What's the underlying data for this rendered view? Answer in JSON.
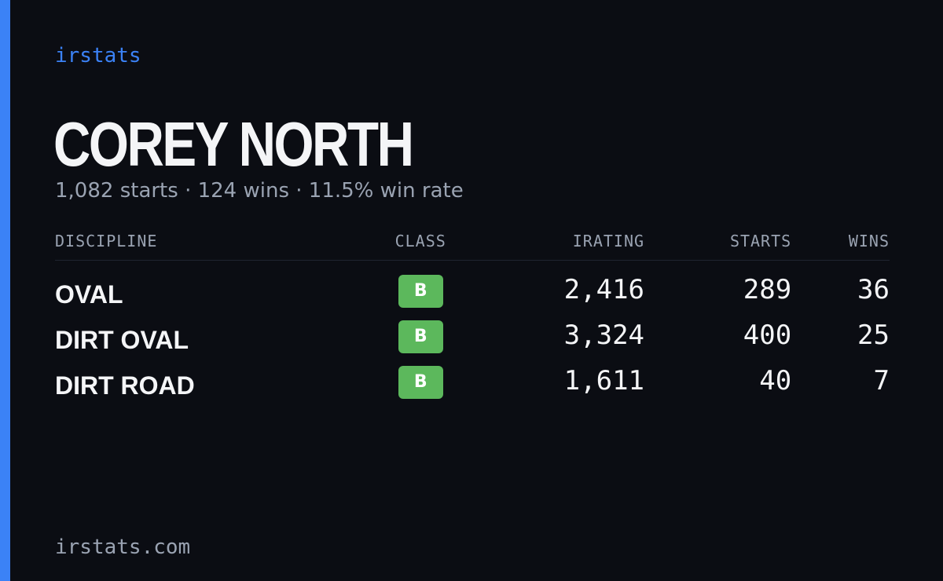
{
  "brand": "irstats",
  "driver": {
    "name": "COREY NORTH",
    "summary": "1,082 starts · 124 wins · 11.5% win rate"
  },
  "table": {
    "headers": [
      "DISCIPLINE",
      "CLASS",
      "IRATING",
      "STARTS",
      "WINS"
    ],
    "rows": [
      [
        "OVAL",
        "B",
        "2,416",
        "289",
        "36"
      ],
      [
        "DIRT OVAL",
        "B",
        "3,324",
        "400",
        "25"
      ],
      [
        "DIRT ROAD",
        "B",
        "1,611",
        "40",
        "7"
      ]
    ]
  },
  "footer": "irstats.com"
}
